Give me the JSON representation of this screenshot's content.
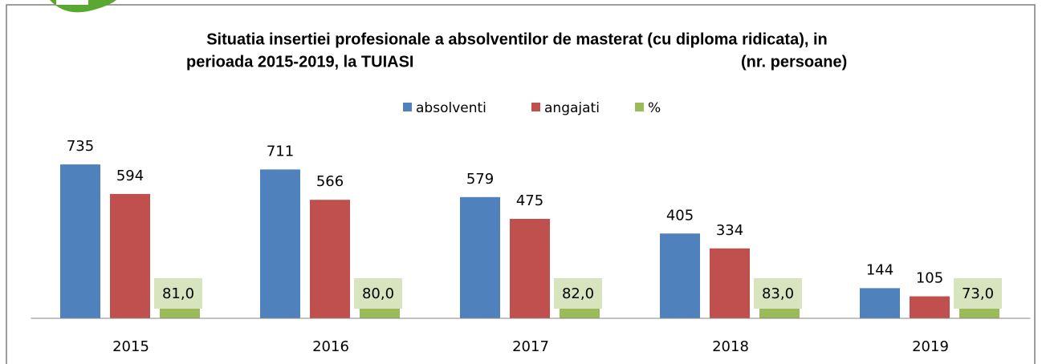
{
  "chart_data": {
    "type": "bar",
    "title": [
      "Situatia insertiei profesionale a absolventilor de masterat (cu diploma ridicata), in",
      "perioada 2015-2019, la TUIASI"
    ],
    "unit_label": "(nr. persoane)",
    "categories": [
      "2015",
      "2016",
      "2017",
      "2018",
      "2019"
    ],
    "series": [
      {
        "name": "absolventi",
        "color": "#4f81bd",
        "values": [
          735,
          711,
          579,
          405,
          144
        ]
      },
      {
        "name": "angajati",
        "color": "#c0504d",
        "values": [
          594,
          566,
          475,
          334,
          105
        ]
      },
      {
        "name": "%",
        "color": "#9bbb59",
        "values": [
          81.0,
          80.0,
          82.0,
          83.0,
          73.0
        ],
        "value_labels": [
          "81,0",
          "80,0",
          "82,0",
          "83,0",
          "73,0"
        ]
      }
    ],
    "ylim": [
      0,
      900
    ]
  }
}
